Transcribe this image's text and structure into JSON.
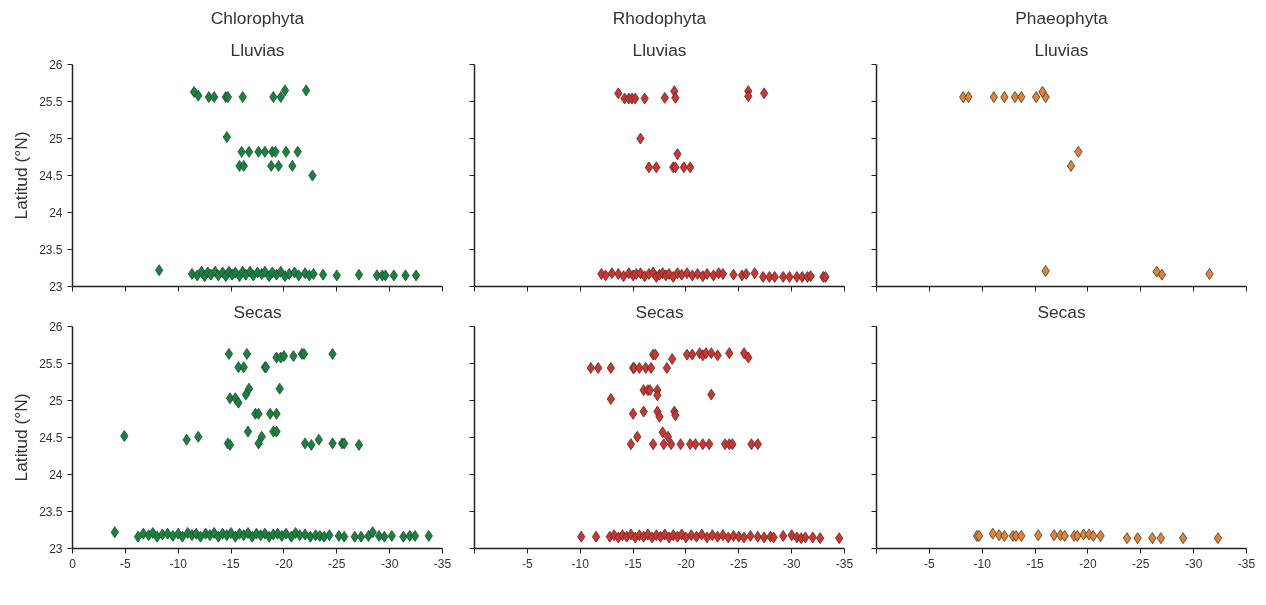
{
  "chart_data": [
    {
      "type": "scatter",
      "title": "Chlorophyta",
      "subtitle": "Lluvias",
      "ylabel": "Latitud (°N)",
      "xlim": [
        0,
        -35
      ],
      "ylim": [
        23,
        26
      ],
      "xticks": [
        0,
        -5,
        -10,
        -15,
        -20,
        -25,
        -30,
        -35
      ],
      "yticks": [
        23,
        23.5,
        24,
        24.5,
        25,
        25.5,
        26
      ],
      "tick_labels": "y",
      "marker": "diamond",
      "grid": false,
      "series": [
        {
          "color": "#0b8a3c",
          "x": [
            -11.5,
            -11.9,
            -12.9,
            -13.4,
            -14.5,
            -14.7,
            -16.1,
            -19.0,
            -19.7,
            -20.1,
            -22.1,
            -14.6,
            -16.0,
            -16.7,
            -17.6,
            -18.2,
            -18.9,
            -19.2,
            -20.2,
            -21.3,
            -15.8,
            -16.2,
            -18.8,
            -19.5,
            -20.8,
            -22.7,
            -8.2,
            -11.3,
            -11.8,
            -12.2,
            -12.5,
            -12.8,
            -13.1,
            -13.5,
            -13.8,
            -14.2,
            -14.5,
            -14.8,
            -15.1,
            -15.4,
            -15.8,
            -16.1,
            -16.4,
            -16.8,
            -17.1,
            -17.5,
            -17.9,
            -18.2,
            -18.6,
            -18.9,
            -19.3,
            -19.7,
            -20.1,
            -20.5,
            -21.0,
            -21.4,
            -22.0,
            -22.4,
            -22.8,
            -23.7,
            -25.0,
            -27.1,
            -28.8,
            -29.3,
            -29.6,
            -30.4,
            -31.5,
            -32.5
          ],
          "values": [
            25.63,
            25.58,
            25.56,
            25.56,
            25.56,
            25.56,
            25.56,
            25.56,
            25.56,
            25.65,
            25.65,
            25.02,
            24.82,
            24.82,
            24.82,
            24.82,
            24.82,
            24.82,
            24.82,
            24.82,
            24.63,
            24.63,
            24.63,
            24.63,
            24.63,
            24.5,
            23.22,
            23.17,
            23.15,
            23.2,
            23.14,
            23.19,
            23.16,
            23.2,
            23.15,
            23.19,
            23.14,
            23.2,
            23.16,
            23.19,
            23.14,
            23.2,
            23.16,
            23.2,
            23.15,
            23.19,
            23.17,
            23.2,
            23.14,
            23.19,
            23.16,
            23.2,
            23.14,
            23.17,
            23.19,
            23.15,
            23.18,
            23.15,
            23.17,
            23.16,
            23.15,
            23.16,
            23.15,
            23.15,
            23.15,
            23.15,
            23.15,
            23.15
          ]
        }
      ]
    },
    {
      "type": "scatter",
      "title": "Rhodophyta",
      "subtitle": "Lluvias",
      "xlim": [
        0,
        -35
      ],
      "ylim": [
        23,
        26
      ],
      "xticks": [
        0,
        -5,
        -10,
        -15,
        -20,
        -25,
        -30,
        -35
      ],
      "yticks": [
        23,
        23.5,
        24,
        24.5,
        25,
        25.5,
        26
      ],
      "tick_labels": false,
      "marker": "diamond",
      "grid": false,
      "series": [
        {
          "color": "#dc2f28",
          "x": [
            -13.6,
            -14.2,
            -14.6,
            -14.9,
            -15.2,
            -16.1,
            -18.0,
            -18.9,
            -19.0,
            -25.9,
            -25.9,
            -27.4,
            -15.7,
            -19.2,
            -16.5,
            -17.2,
            -18.8,
            -19.0,
            -19.8,
            -20.4,
            -12.0,
            -12.4,
            -13.0,
            -13.6,
            -14.1,
            -14.6,
            -15.0,
            -15.3,
            -15.7,
            -16.1,
            -16.5,
            -16.9,
            -17.2,
            -17.5,
            -17.8,
            -18.1,
            -18.4,
            -18.8,
            -19.2,
            -19.6,
            -20.1,
            -20.6,
            -21.1,
            -21.6,
            -22.0,
            -22.6,
            -23.1,
            -23.5,
            -24.5,
            -25.3,
            -25.7,
            -26.5,
            -27.3,
            -27.9,
            -28.4,
            -29.2,
            -29.8,
            -30.5,
            -31.0,
            -31.5,
            -31.8,
            -33.0,
            -33.2
          ],
          "values": [
            25.61,
            25.54,
            25.54,
            25.54,
            25.54,
            25.54,
            25.55,
            25.64,
            25.55,
            25.64,
            25.57,
            25.61,
            25.0,
            24.79,
            24.61,
            24.61,
            24.61,
            24.61,
            24.61,
            24.61,
            23.17,
            23.15,
            23.18,
            23.17,
            23.14,
            23.18,
            23.15,
            23.17,
            23.18,
            23.14,
            23.17,
            23.19,
            23.13,
            23.16,
            23.18,
            23.15,
            23.17,
            23.13,
            23.18,
            23.16,
            23.18,
            23.15,
            23.17,
            23.14,
            23.17,
            23.15,
            23.18,
            23.17,
            23.16,
            23.15,
            23.17,
            23.18,
            23.13,
            23.13,
            23.13,
            23.13,
            23.13,
            23.13,
            23.13,
            23.13,
            23.14,
            23.13,
            23.13
          ]
        }
      ]
    },
    {
      "type": "scatter",
      "title": "Phaeophyta",
      "subtitle": "Lluvias",
      "xlim": [
        0,
        -35
      ],
      "ylim": [
        23,
        26
      ],
      "xticks": [
        0,
        -5,
        -10,
        -15,
        -20,
        -25,
        -30,
        -35
      ],
      "yticks": [
        23,
        23.5,
        24,
        24.5,
        25,
        25.5,
        26
      ],
      "tick_labels": false,
      "marker": "diamond",
      "grid": false,
      "series": [
        {
          "color": "#e8822c",
          "x": [
            -8.2,
            -8.7,
            -11.1,
            -12.1,
            -13.1,
            -13.7,
            -15.1,
            -16.0,
            -15.7,
            -18.4,
            -19.1,
            -16.0,
            -26.5,
            -27.0,
            -31.5
          ],
          "values": [
            25.56,
            25.56,
            25.56,
            25.56,
            25.56,
            25.56,
            25.56,
            25.56,
            25.63,
            24.63,
            24.82,
            23.21,
            23.2,
            23.16,
            23.17
          ]
        }
      ]
    },
    {
      "type": "scatter",
      "title": "Secas",
      "ylabel": "Latitud (°N)",
      "xlim": [
        0,
        -35
      ],
      "ylim": [
        23,
        26
      ],
      "xticks": [
        0,
        -5,
        -10,
        -15,
        -20,
        -25,
        -30,
        -35
      ],
      "yticks": [
        23,
        23.5,
        24,
        24.5,
        25,
        25.5,
        26
      ],
      "marker": "diamond",
      "grid": false,
      "series": [
        {
          "color": "#0b8a3c",
          "x": [
            -14.8,
            -16.5,
            -19.3,
            -19.7,
            -20.0,
            -20.9,
            -21.7,
            -21.9,
            -24.6,
            -15.7,
            -16.2,
            -18.2,
            -18.3,
            -16.7,
            -16.4,
            -19.6,
            -14.9,
            -15.4,
            -15.7,
            -17.3,
            -17.6,
            -18.7,
            -19.3,
            -16.6,
            -19.0,
            -19.3,
            -17.9,
            -17.6,
            -4.9,
            -10.8,
            -11.9,
            -14.7,
            -14.9,
            -22.0,
            -22.6,
            -23.3,
            -24.6,
            -25.5,
            -25.7,
            -27.1,
            -4.0,
            -6.2,
            -6.7,
            -7.2,
            -7.6,
            -8.0,
            -8.5,
            -9.0,
            -9.5,
            -10.0,
            -10.4,
            -10.9,
            -11.3,
            -11.7,
            -12.1,
            -12.6,
            -13.0,
            -13.4,
            -13.8,
            -14.2,
            -14.6,
            -15.0,
            -15.4,
            -15.8,
            -16.2,
            -16.6,
            -17.0,
            -17.4,
            -17.8,
            -18.2,
            -18.6,
            -19.0,
            -19.4,
            -19.8,
            -20.2,
            -20.7,
            -21.1,
            -21.5,
            -22.0,
            -22.5,
            -23.0,
            -23.4,
            -23.8,
            -24.3,
            -25.2,
            -25.7,
            -26.7,
            -27.3,
            -28.0,
            -28.4,
            -29.0,
            -29.5,
            -30.2,
            -31.3,
            -31.9,
            -32.4,
            -33.7
          ],
          "values": [
            25.63,
            25.63,
            25.58,
            25.58,
            25.6,
            25.6,
            25.63,
            25.63,
            25.63,
            25.45,
            25.45,
            25.45,
            25.45,
            25.16,
            25.08,
            25.16,
            25.03,
            25.03,
            24.97,
            24.82,
            24.82,
            24.82,
            24.82,
            24.58,
            24.58,
            24.58,
            24.51,
            24.42,
            24.52,
            24.47,
            24.51,
            24.42,
            24.4,
            24.42,
            24.4,
            24.47,
            24.42,
            24.42,
            24.42,
            24.4,
            23.22,
            23.16,
            23.2,
            23.18,
            23.21,
            23.16,
            23.19,
            23.2,
            23.17,
            23.2,
            23.16,
            23.21,
            23.18,
            23.2,
            23.16,
            23.2,
            23.18,
            23.21,
            23.16,
            23.2,
            23.18,
            23.21,
            23.16,
            23.2,
            23.18,
            23.21,
            23.16,
            23.2,
            23.18,
            23.2,
            23.16,
            23.19,
            23.2,
            23.17,
            23.2,
            23.16,
            23.21,
            23.18,
            23.19,
            23.16,
            23.18,
            23.17,
            23.16,
            23.18,
            23.17,
            23.16,
            23.16,
            23.16,
            23.17,
            23.22,
            23.17,
            23.16,
            23.17,
            23.16,
            23.17,
            23.17,
            23.17
          ]
        }
      ]
    },
    {
      "type": "scatter",
      "title": "Secas",
      "xlim": [
        0,
        -35
      ],
      "ylim": [
        23,
        26
      ],
      "xticks": [
        {
          "value": 0,
          "label": null
        },
        -5,
        -10,
        -15,
        -20,
        -25,
        -30,
        -35
      ],
      "yticks": [
        23,
        23.5,
        24,
        24.5,
        25,
        25.5,
        26
      ],
      "tick_labels": "x",
      "marker": "diamond",
      "grid": false,
      "series": [
        {
          "color": "#dc2f28",
          "x": [
            -16.9,
            -17.1,
            -18.7,
            -20.1,
            -20.6,
            -21.3,
            -21.6,
            -21.9,
            -22.4,
            -23.0,
            -24.1,
            -25.5,
            -25.9,
            -11.0,
            -11.7,
            -12.9,
            -15.0,
            -15.1,
            -15.6,
            -16.2,
            -16.7,
            -18.2,
            -16.0,
            -16.4,
            -16.6,
            -17.3,
            -17.3,
            -22.4,
            -12.9,
            -15.0,
            -16.0,
            -17.3,
            -17.5,
            -18.9,
            -19.0,
            -17.8,
            -18.3,
            -15.4,
            -14.8,
            -16.9,
            -17.9,
            -18.6,
            -19.5,
            -20.4,
            -20.9,
            -21.6,
            -22.2,
            -23.7,
            -24.1,
            -24.4,
            -26.2,
            -26.8,
            -10.1,
            -11.5,
            -12.8,
            -13.2,
            -13.6,
            -14.0,
            -14.4,
            -14.8,
            -15.2,
            -15.6,
            -16.0,
            -16.4,
            -16.8,
            -17.2,
            -17.6,
            -18.0,
            -18.4,
            -18.8,
            -19.2,
            -19.6,
            -20.0,
            -20.5,
            -21.0,
            -21.5,
            -22.0,
            -22.5,
            -23.0,
            -23.5,
            -24.0,
            -24.5,
            -25.0,
            -25.5,
            -26.1,
            -26.8,
            -27.4,
            -28.0,
            -28.3,
            -29.2,
            -30.0,
            -30.5,
            -30.9,
            -31.3,
            -32.0,
            -32.7,
            -34.5
          ],
          "values": [
            25.62,
            25.62,
            25.56,
            25.62,
            25.62,
            25.64,
            25.61,
            25.64,
            25.64,
            25.61,
            25.64,
            25.64,
            25.58,
            25.44,
            25.44,
            25.44,
            25.44,
            25.44,
            25.44,
            25.44,
            25.44,
            25.44,
            25.14,
            25.14,
            25.14,
            25.14,
            25.07,
            25.08,
            25.02,
            24.82,
            24.85,
            24.85,
            24.78,
            24.85,
            24.8,
            24.57,
            24.51,
            24.51,
            24.41,
            24.41,
            24.41,
            24.41,
            24.41,
            24.41,
            24.41,
            24.41,
            24.41,
            24.41,
            24.41,
            24.41,
            24.41,
            24.41,
            23.16,
            23.16,
            23.16,
            23.18,
            23.15,
            23.18,
            23.16,
            23.19,
            23.15,
            23.18,
            23.16,
            23.19,
            23.15,
            23.18,
            23.16,
            23.19,
            23.15,
            23.18,
            23.16,
            23.19,
            23.15,
            23.18,
            23.16,
            23.19,
            23.15,
            23.18,
            23.16,
            23.18,
            23.15,
            23.17,
            23.16,
            23.15,
            23.17,
            23.16,
            23.15,
            23.16,
            23.15,
            23.17,
            23.18,
            23.15,
            23.14,
            23.15,
            23.15,
            23.14,
            23.14
          ]
        }
      ]
    },
    {
      "type": "scatter",
      "title": "Secas",
      "xlim": [
        0,
        -35
      ],
      "ylim": [
        23,
        26
      ],
      "xticks": [
        {
          "value": 0,
          "label": null
        },
        -5,
        -10,
        -15,
        -20,
        -25,
        -30,
        -35
      ],
      "yticks": [
        23,
        23.5,
        24,
        24.5,
        25,
        25.5,
        26
      ],
      "tick_labels": "x",
      "marker": "diamond",
      "grid": false,
      "series": [
        {
          "color": "#e8822c",
          "x": [
            -9.5,
            -9.7,
            -11.0,
            -11.6,
            -12.1,
            -12.9,
            -13.2,
            -13.7,
            -15.3,
            -16.8,
            -17.4,
            -17.8,
            -18.7,
            -19.0,
            -19.6,
            -20.1,
            -20.5,
            -21.2,
            -23.7,
            -24.7,
            -26.1,
            -26.9,
            -29.0,
            -32.3
          ],
          "values": [
            23.17,
            23.17,
            23.2,
            23.18,
            23.17,
            23.17,
            23.17,
            23.17,
            23.18,
            23.18,
            23.18,
            23.17,
            23.17,
            23.17,
            23.19,
            23.19,
            23.17,
            23.17,
            23.14,
            23.14,
            23.14,
            23.14,
            23.14,
            23.14
          ]
        }
      ]
    }
  ]
}
